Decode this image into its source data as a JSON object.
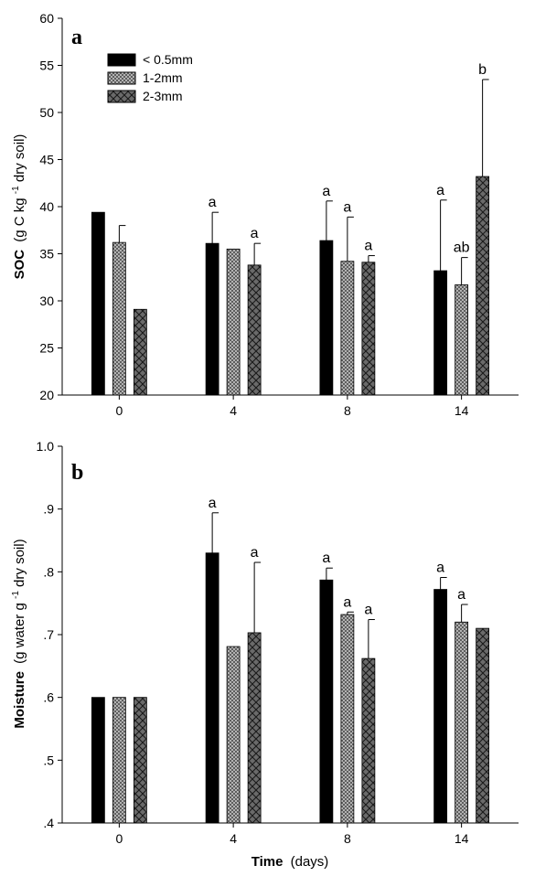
{
  "chart_data": [
    {
      "type": "bar",
      "panel_label": "a",
      "ylabel_main": "SOC",
      "ylabel_unit_pre": "(g C kg",
      "ylabel_unit_sup": "-1",
      "ylabel_unit_post": " dry soil)",
      "xlabel_main": "",
      "xlabel_unit": "",
      "categories": [
        "0",
        "4",
        "8",
        "14"
      ],
      "ylim": [
        20,
        60
      ],
      "yticks": [
        20,
        25,
        30,
        35,
        40,
        45,
        50,
        55,
        60
      ],
      "ytick_labels": [
        "20",
        "25",
        "30",
        "35",
        "40",
        "45",
        "50",
        "55",
        "60"
      ],
      "legend": {
        "position": "top-left",
        "entries": [
          "< 0.5mm",
          "1-2mm",
          "2-3mm"
        ]
      },
      "series": [
        {
          "name": "< 0.5mm",
          "values": [
            39.4,
            36.1,
            36.4,
            33.2
          ],
          "errors": [
            0,
            3.3,
            4.2,
            7.5
          ],
          "labels": [
            "",
            "a",
            "a",
            "a"
          ]
        },
        {
          "name": "1-2mm",
          "values": [
            36.2,
            35.5,
            34.2,
            31.7
          ],
          "errors": [
            1.8,
            0,
            4.7,
            2.9
          ],
          "labels": [
            "",
            "",
            "a",
            "ab"
          ]
        },
        {
          "name": "2-3mm",
          "values": [
            29.1,
            33.8,
            34.1,
            43.2
          ],
          "errors": [
            0,
            2.3,
            0.7,
            10.3
          ],
          "labels": [
            "",
            "a",
            "a",
            "b"
          ]
        }
      ]
    },
    {
      "type": "bar",
      "panel_label": "b",
      "ylabel_main": "Moisture",
      "ylabel_unit_pre": "(g water g",
      "ylabel_unit_sup": "-1",
      "ylabel_unit_post": "dry soil)",
      "xlabel_main": "Time",
      "xlabel_unit": "(days)",
      "categories": [
        "0",
        "4",
        "8",
        "14"
      ],
      "ylim": [
        0.4,
        1.0
      ],
      "yticks": [
        0.4,
        0.5,
        0.6,
        0.7,
        0.8,
        0.9,
        1.0
      ],
      "ytick_labels": [
        ".4",
        ".5",
        ".6",
        ".7",
        ".8",
        ".9",
        "1.0"
      ],
      "series": [
        {
          "name": "< 0.5mm",
          "values": [
            0.6,
            0.83,
            0.787,
            0.772
          ],
          "errors": [
            0,
            0.064,
            0.019,
            0.019
          ],
          "labels": [
            "",
            "a",
            "a",
            "a"
          ]
        },
        {
          "name": "1-2mm",
          "values": [
            0.6,
            0.681,
            0.732,
            0.72
          ],
          "errors": [
            0,
            0,
            0.004,
            0.028
          ],
          "labels": [
            "",
            "",
            "a",
            "a"
          ]
        },
        {
          "name": "2-3mm",
          "values": [
            0.6,
            0.703,
            0.662,
            0.71
          ],
          "errors": [
            0,
            0.112,
            0.062,
            0
          ],
          "labels": [
            "",
            "a",
            "a",
            ""
          ]
        }
      ]
    }
  ],
  "colors": {
    "series_1": "#000000",
    "series_2": "#bbbbbb",
    "series_3": "#5e5e5e"
  }
}
